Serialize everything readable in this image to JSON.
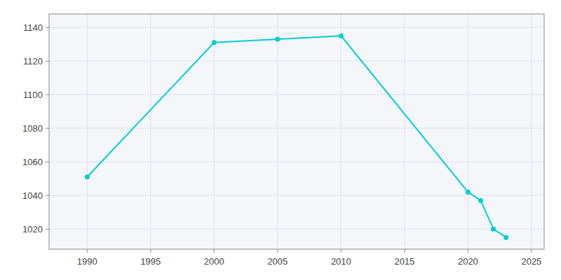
{
  "chart_data": {
    "type": "line",
    "x": [
      1990,
      2000,
      2005,
      2010,
      2020,
      2021,
      2022,
      2023
    ],
    "values": [
      1051,
      1131,
      1133,
      1135,
      1042,
      1037,
      1020,
      1015
    ],
    "color": "#00CED1",
    "marker": "circle",
    "xlim": [
      1987,
      2026
    ],
    "ylim": [
      1008,
      1148
    ],
    "xticks": [
      1990,
      1995,
      2000,
      2005,
      2010,
      2015,
      2020,
      2025
    ],
    "yticks": [
      1020,
      1040,
      1060,
      1080,
      1100,
      1120,
      1140
    ],
    "grid": true
  }
}
